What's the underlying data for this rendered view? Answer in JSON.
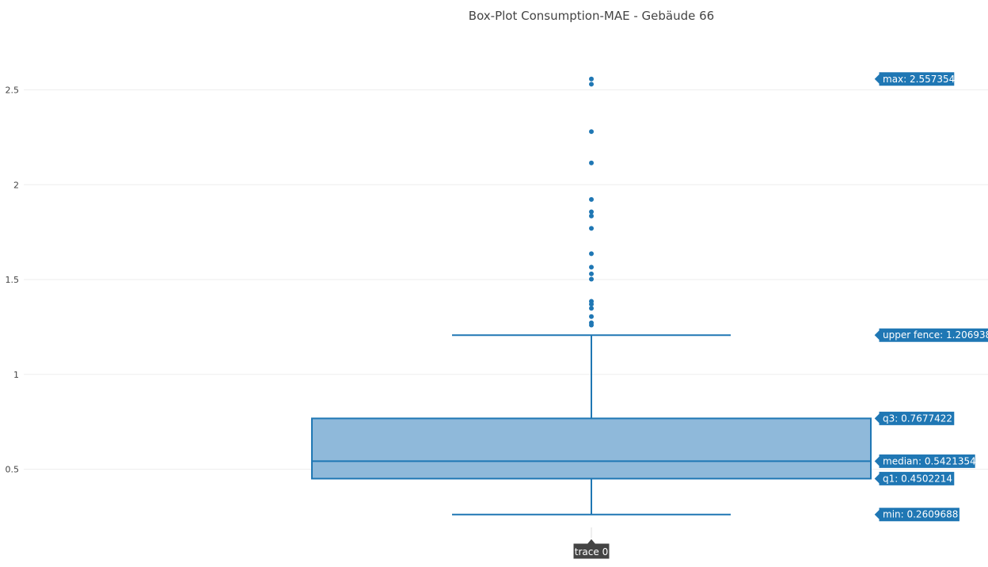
{
  "chart_data": {
    "type": "box",
    "title": "Box-Plot Consumption-MAE - Gebäude 66",
    "xlabel": "",
    "ylabel": "",
    "ylim": [
      0.2,
      2.75
    ],
    "yticks": [
      0.5,
      1,
      1.5,
      2,
      2.5
    ],
    "ytick_labels": [
      "0.5",
      "1",
      "1.5",
      "2",
      "2.5"
    ],
    "grid": true,
    "legend": "none",
    "series": [
      {
        "trace_label": "trace 0",
        "color": "#1f77b4",
        "fill_color": "#8fb9da",
        "min": 0.2609688,
        "q1": 0.4502214,
        "median": 0.5421354,
        "q3": 0.7677422,
        "upper_fence": 1.206938,
        "max": 2.557354,
        "outliers": [
          2.557354,
          2.53,
          2.28,
          2.115,
          1.922,
          1.857,
          1.835,
          1.77,
          1.636,
          1.565,
          1.53,
          1.502,
          1.385,
          1.37,
          1.348,
          1.305,
          1.272,
          1.26
        ]
      }
    ],
    "hover_labels": [
      {
        "key": "max",
        "text": "max: 2.557354"
      },
      {
        "key": "upper_fence",
        "text": "upper fence: 1.206938"
      },
      {
        "key": "q3",
        "text": "q3: 0.7677422"
      },
      {
        "key": "median",
        "text": "median: 0.5421354"
      },
      {
        "key": "q1",
        "text": "q1: 0.4502214"
      },
      {
        "key": "min",
        "text": "min: 0.2609688"
      }
    ]
  }
}
